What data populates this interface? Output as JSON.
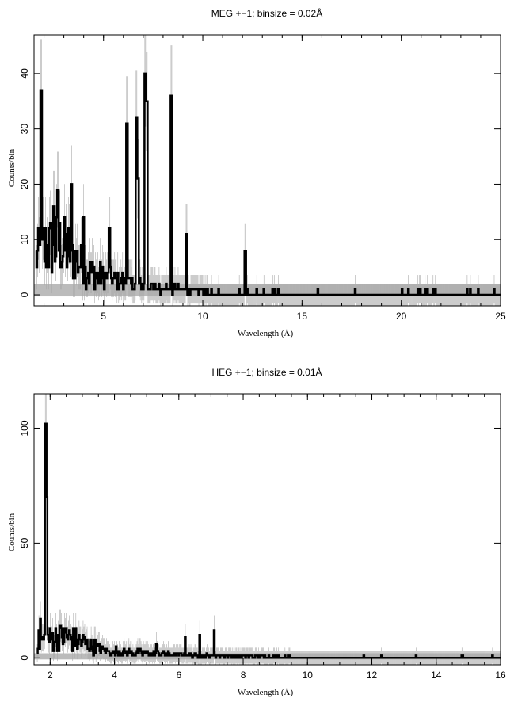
{
  "colors": {
    "data": "#000000",
    "errorbar": "#aaaaaa",
    "model": "#bbbbbb",
    "axis": "#000000"
  },
  "chart_data": [
    {
      "type": "line",
      "title": "MEG +−1; binsize = 0.02Å",
      "xlabel": "Wavelength (Å)",
      "ylabel": "Counts/bin",
      "xlim": [
        1.5,
        25
      ],
      "ylim": [
        -2,
        47
      ],
      "xticks": [
        5,
        10,
        15,
        20,
        25
      ],
      "yticks": [
        0,
        10,
        20,
        30,
        40
      ],
      "grid": false,
      "peaks": [
        {
          "x": 1.85,
          "y": 37
        },
        {
          "x": 2.5,
          "y": 16
        },
        {
          "x": 2.7,
          "y": 19
        },
        {
          "x": 3.4,
          "y": 20
        },
        {
          "x": 6.18,
          "y": 31
        },
        {
          "x": 6.65,
          "y": 32
        },
        {
          "x": 6.75,
          "y": 21
        },
        {
          "x": 7.1,
          "y": 40
        },
        {
          "x": 7.18,
          "y": 35
        },
        {
          "x": 8.42,
          "y": 36
        },
        {
          "x": 9.17,
          "y": 11
        },
        {
          "x": 12.13,
          "y": 8
        },
        {
          "x": 5.3,
          "y": 12
        },
        {
          "x": 4.0,
          "y": 14
        }
      ],
      "model_band": [
        0,
        2
      ]
    },
    {
      "type": "line",
      "title": "HEG +−1; binsize = 0.01Å",
      "xlabel": "Wavelength (Å)",
      "ylabel": "Counts/bin",
      "xlim": [
        1.5,
        16
      ],
      "ylim": [
        -3,
        115
      ],
      "xticks": [
        2,
        4,
        6,
        8,
        10,
        12,
        14,
        16
      ],
      "yticks": [
        0,
        50,
        100
      ],
      "grid": false,
      "peaks": [
        {
          "x": 1.86,
          "y": 102
        },
        {
          "x": 1.9,
          "y": 70
        },
        {
          "x": 1.7,
          "y": 17
        },
        {
          "x": 2.3,
          "y": 14
        },
        {
          "x": 2.5,
          "y": 13
        },
        {
          "x": 6.65,
          "y": 10
        },
        {
          "x": 7.1,
          "y": 12
        },
        {
          "x": 6.2,
          "y": 9
        },
        {
          "x": 3.4,
          "y": 8
        },
        {
          "x": 5.3,
          "y": 6
        }
      ],
      "model_band": [
        0,
        2
      ]
    }
  ]
}
